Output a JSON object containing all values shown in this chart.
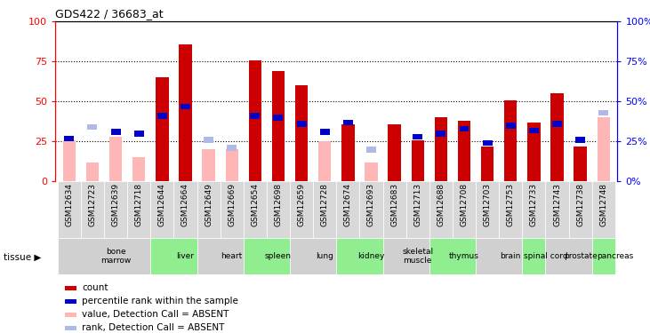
{
  "title": "GDS422 / 36683_at",
  "samples": [
    "GSM12634",
    "GSM12723",
    "GSM12639",
    "GSM12718",
    "GSM12644",
    "GSM12664",
    "GSM12649",
    "GSM12669",
    "GSM12654",
    "GSM12698",
    "GSM12659",
    "GSM12728",
    "GSM12674",
    "GSM12693",
    "GSM12683",
    "GSM12713",
    "GSM12688",
    "GSM12708",
    "GSM12703",
    "GSM12753",
    "GSM12733",
    "GSM12743",
    "GSM12738",
    "GSM12748"
  ],
  "tissues": [
    {
      "label": "bone\nmarrow",
      "start": 0,
      "end": 4,
      "color": "#d0d0d0"
    },
    {
      "label": "liver",
      "start": 4,
      "end": 6,
      "color": "#90ee90"
    },
    {
      "label": "heart",
      "start": 6,
      "end": 8,
      "color": "#d0d0d0"
    },
    {
      "label": "spleen",
      "start": 8,
      "end": 10,
      "color": "#90ee90"
    },
    {
      "label": "lung",
      "start": 10,
      "end": 12,
      "color": "#d0d0d0"
    },
    {
      "label": "kidney",
      "start": 12,
      "end": 14,
      "color": "#90ee90"
    },
    {
      "label": "skeletal\nmuscle",
      "start": 14,
      "end": 16,
      "color": "#d0d0d0"
    },
    {
      "label": "thymus",
      "start": 16,
      "end": 18,
      "color": "#90ee90"
    },
    {
      "label": "brain",
      "start": 18,
      "end": 20,
      "color": "#d0d0d0"
    },
    {
      "label": "spinal cord",
      "start": 20,
      "end": 21,
      "color": "#90ee90"
    },
    {
      "label": "prostate",
      "start": 21,
      "end": 23,
      "color": "#d0d0d0"
    },
    {
      "label": "pancreas",
      "start": 23,
      "end": 24,
      "color": "#90ee90"
    }
  ],
  "count_present": [
    0,
    0,
    0,
    0,
    65,
    86,
    0,
    0,
    76,
    69,
    60,
    0,
    36,
    0,
    36,
    26,
    40,
    38,
    22,
    51,
    37,
    55,
    22,
    0
  ],
  "count_absent": [
    26,
    12,
    28,
    15,
    0,
    0,
    20,
    20,
    0,
    0,
    0,
    25,
    0,
    12,
    0,
    0,
    0,
    0,
    0,
    0,
    0,
    0,
    0,
    40
  ],
  "rank_present": [
    27,
    0,
    31,
    30,
    41,
    47,
    0,
    0,
    41,
    40,
    36,
    31,
    37,
    0,
    0,
    28,
    30,
    33,
    24,
    35,
    32,
    36,
    26,
    0
  ],
  "rank_absent": [
    0,
    34,
    0,
    0,
    0,
    0,
    26,
    21,
    0,
    0,
    0,
    0,
    0,
    20,
    0,
    0,
    0,
    0,
    0,
    0,
    0,
    0,
    0,
    43
  ],
  "ylim": [
    0,
    100
  ],
  "yticks": [
    0,
    25,
    50,
    75,
    100
  ],
  "bar_color_present": "#cc0000",
  "bar_color_absent": "#ffb6b6",
  "rank_color_present": "#0000cc",
  "rank_color_absent": "#b0b8e8",
  "legend_items": [
    {
      "label": "count",
      "color": "#cc0000"
    },
    {
      "label": "percentile rank within the sample",
      "color": "#0000cc"
    },
    {
      "label": "value, Detection Call = ABSENT",
      "color": "#ffb6b6"
    },
    {
      "label": "rank, Detection Call = ABSENT",
      "color": "#b0b8e8"
    }
  ],
  "tick_bg_color": "#d8d8d8",
  "plot_bg": "#ffffff"
}
